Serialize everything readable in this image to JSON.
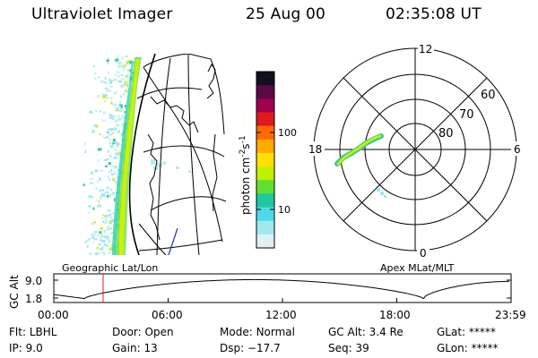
{
  "header": {
    "title": "Ultraviolet Imager",
    "date": "25 Aug 00",
    "time": "02:35:08 UT"
  },
  "colorbar": {
    "unit_label_main": "photon cm",
    "unit_sup1": "-2",
    "unit_mid": "s",
    "unit_sup2": "-1",
    "tick_labels": [
      "100",
      "10"
    ],
    "colors": [
      "#101020",
      "#5a0a46",
      "#a00050",
      "#e01820",
      "#ff6a00",
      "#ffaa00",
      "#ffe000",
      "#c0f000",
      "#60e030",
      "#20c8a0",
      "#50d8e8",
      "#a0e8f0",
      "#e0f0f4"
    ]
  },
  "geo_panel": {
    "label": "Geographic Lat/Lon"
  },
  "polar_panel": {
    "label": "Apex MLat/MLT",
    "mlt_labels": {
      "top": "12",
      "left": "18",
      "right": "6",
      "bottom": "0"
    },
    "lat_labels": [
      "60",
      "70",
      "80"
    ]
  },
  "altitude_plot": {
    "ylabel": "GC Alt",
    "ytick_labels": [
      "9.0",
      "1.8"
    ],
    "xtick_labels": [
      "00:00",
      "06:00",
      "12:00",
      "18:00",
      "23:59"
    ],
    "marker_time_hours": 2.59,
    "marker_color": "#e02020"
  },
  "status": {
    "flt_label": "Flt:",
    "flt_value": "LBHL",
    "ip_label": "IP:",
    "ip_value": "9.0",
    "door_label": "Door:",
    "door_value": "Open",
    "gain_label": "Gain:",
    "gain_value": "13",
    "mode_label": "Mode:",
    "mode_value": "Normal",
    "dsp_label": "Dsp:",
    "dsp_value": "−17.7",
    "gcalt_label": "GC Alt:",
    "gcalt_value": "3.4 Re",
    "seq_label": "Seq:",
    "seq_value": "39",
    "glat_label": "GLat:",
    "glat_value": "*****",
    "glon_label": "GLon:",
    "glon_value": "*****"
  }
}
